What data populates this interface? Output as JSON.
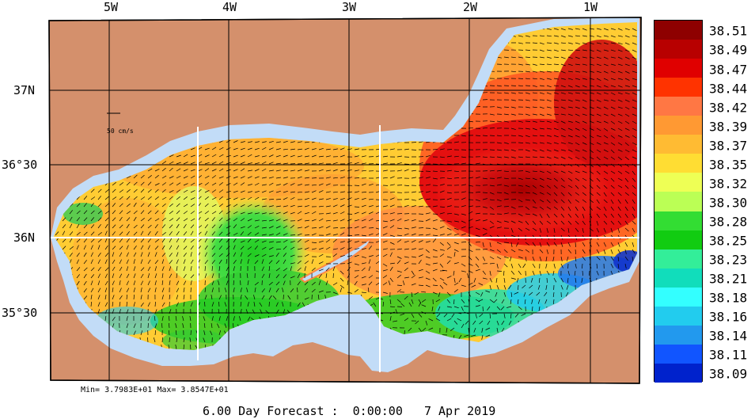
{
  "map": {
    "lon_labels": [
      "5W",
      "4W",
      "3W",
      "2W",
      "1W"
    ],
    "lat_labels": [
      "37N",
      "36°30",
      "36N",
      "35°30"
    ],
    "scale_label": "50 cm/s",
    "colors": {
      "land": "#d4906c",
      "shelf": "#c2dcf7"
    }
  },
  "legend": {
    "labels": [
      "38.51",
      "38.49",
      "38.47",
      "38.44",
      "38.42",
      "38.39",
      "38.37",
      "38.35",
      "38.32",
      "38.30",
      "38.28",
      "38.25",
      "38.23",
      "38.21",
      "38.18",
      "38.16",
      "38.14",
      "38.11",
      "38.09"
    ],
    "colors": [
      "#8e0000",
      "#b80000",
      "#e00000",
      "#ff3300",
      "#ff7744",
      "#ff9933",
      "#ffbb33",
      "#ffdd33",
      "#eeff55",
      "#bbff55",
      "#33dd33",
      "#11cc11",
      "#33ee99",
      "#11ddbb",
      "#33ffff",
      "#22ccee",
      "#2299ee",
      "#1155ff",
      "#0022cc"
    ]
  },
  "minmax_text": "Min= 3.7983E+01  Max= 3.8547E+01",
  "footer_text": "6.00 Day Forecast :  0:00:00   7 Apr 2019"
}
